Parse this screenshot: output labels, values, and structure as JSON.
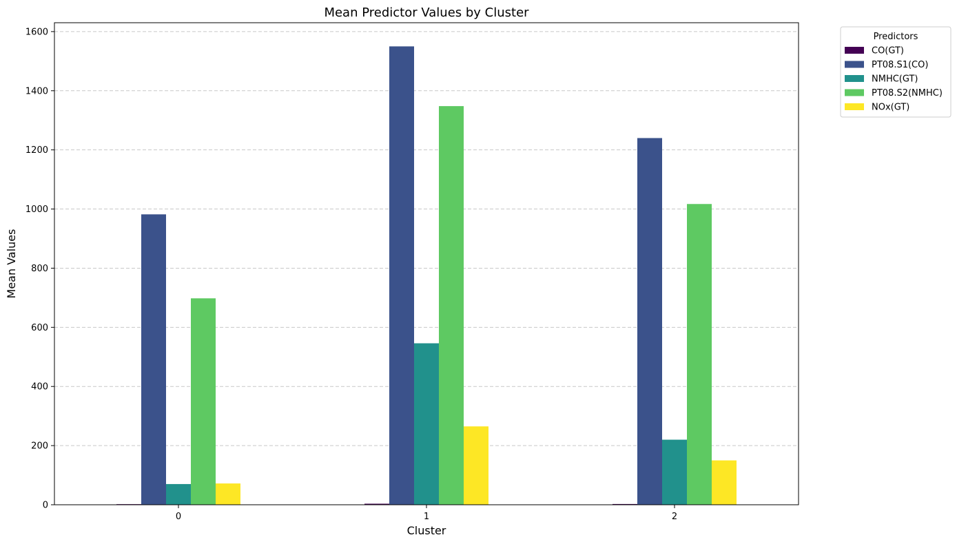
{
  "chart_data": {
    "type": "bar",
    "title": "Mean Predictor Values by Cluster",
    "xlabel": "Cluster",
    "ylabel": "Mean Values",
    "categories": [
      "0",
      "1",
      "2"
    ],
    "ylim": [
      0,
      1630
    ],
    "yticks": [
      0,
      200,
      400,
      600,
      800,
      1000,
      1200,
      1400,
      1600
    ],
    "grid": "y-dashed",
    "legend": {
      "title": "Predictors",
      "placement": "outside-top-right"
    },
    "series": [
      {
        "name": "CO(GT)",
        "color": "#440154",
        "values": [
          2.0,
          3.5,
          2.5
        ]
      },
      {
        "name": "PT08.S1(CO)",
        "color": "#3b528b",
        "values": [
          982,
          1550,
          1240
        ]
      },
      {
        "name": "NMHC(GT)",
        "color": "#21918c",
        "values": [
          70,
          546,
          220
        ]
      },
      {
        "name": "PT08.S2(NMHC)",
        "color": "#5ec962",
        "values": [
          698,
          1348,
          1017
        ]
      },
      {
        "name": "NOx(GT)",
        "color": "#fde725",
        "values": [
          72,
          265,
          150
        ]
      }
    ]
  }
}
